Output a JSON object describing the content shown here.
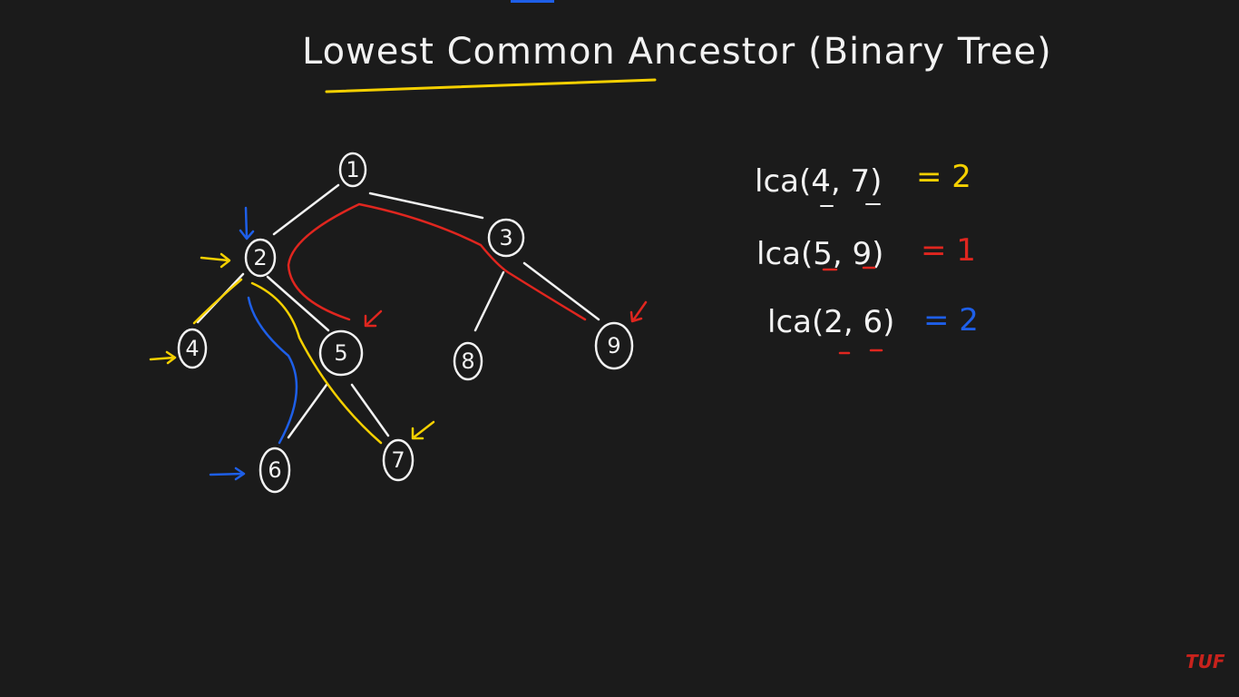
{
  "title": "Lowest Common Ancestor (Binary Tree)",
  "tree": {
    "nodes": [
      {
        "id": "1",
        "label": "1"
      },
      {
        "id": "2",
        "label": "2"
      },
      {
        "id": "3",
        "label": "3"
      },
      {
        "id": "4",
        "label": "4"
      },
      {
        "id": "5",
        "label": "5"
      },
      {
        "id": "8",
        "label": "8"
      },
      {
        "id": "9",
        "label": "9"
      },
      {
        "id": "6",
        "label": "6"
      },
      {
        "id": "7",
        "label": "7"
      }
    ],
    "edges": [
      [
        "1",
        "2"
      ],
      [
        "1",
        "3"
      ],
      [
        "2",
        "4"
      ],
      [
        "2",
        "5"
      ],
      [
        "3",
        "8"
      ],
      [
        "3",
        "9"
      ],
      [
        "5",
        "6"
      ],
      [
        "5",
        "7"
      ]
    ]
  },
  "queries": [
    {
      "expr": "lca(4, 7)",
      "result": "= 2",
      "color": "#f5d000"
    },
    {
      "expr": "lca(5, 9)",
      "result": "= 1",
      "color": "#e0261f"
    },
    {
      "expr": "lca(2, 6)",
      "result": "= 2",
      "color": "#1e5fe8"
    }
  ],
  "colors": {
    "background": "#1b1b1b",
    "ink": "#f2f2f2",
    "yellow": "#f5d000",
    "red": "#e0261f",
    "blue": "#1e5fe8"
  },
  "logo": "TUF"
}
